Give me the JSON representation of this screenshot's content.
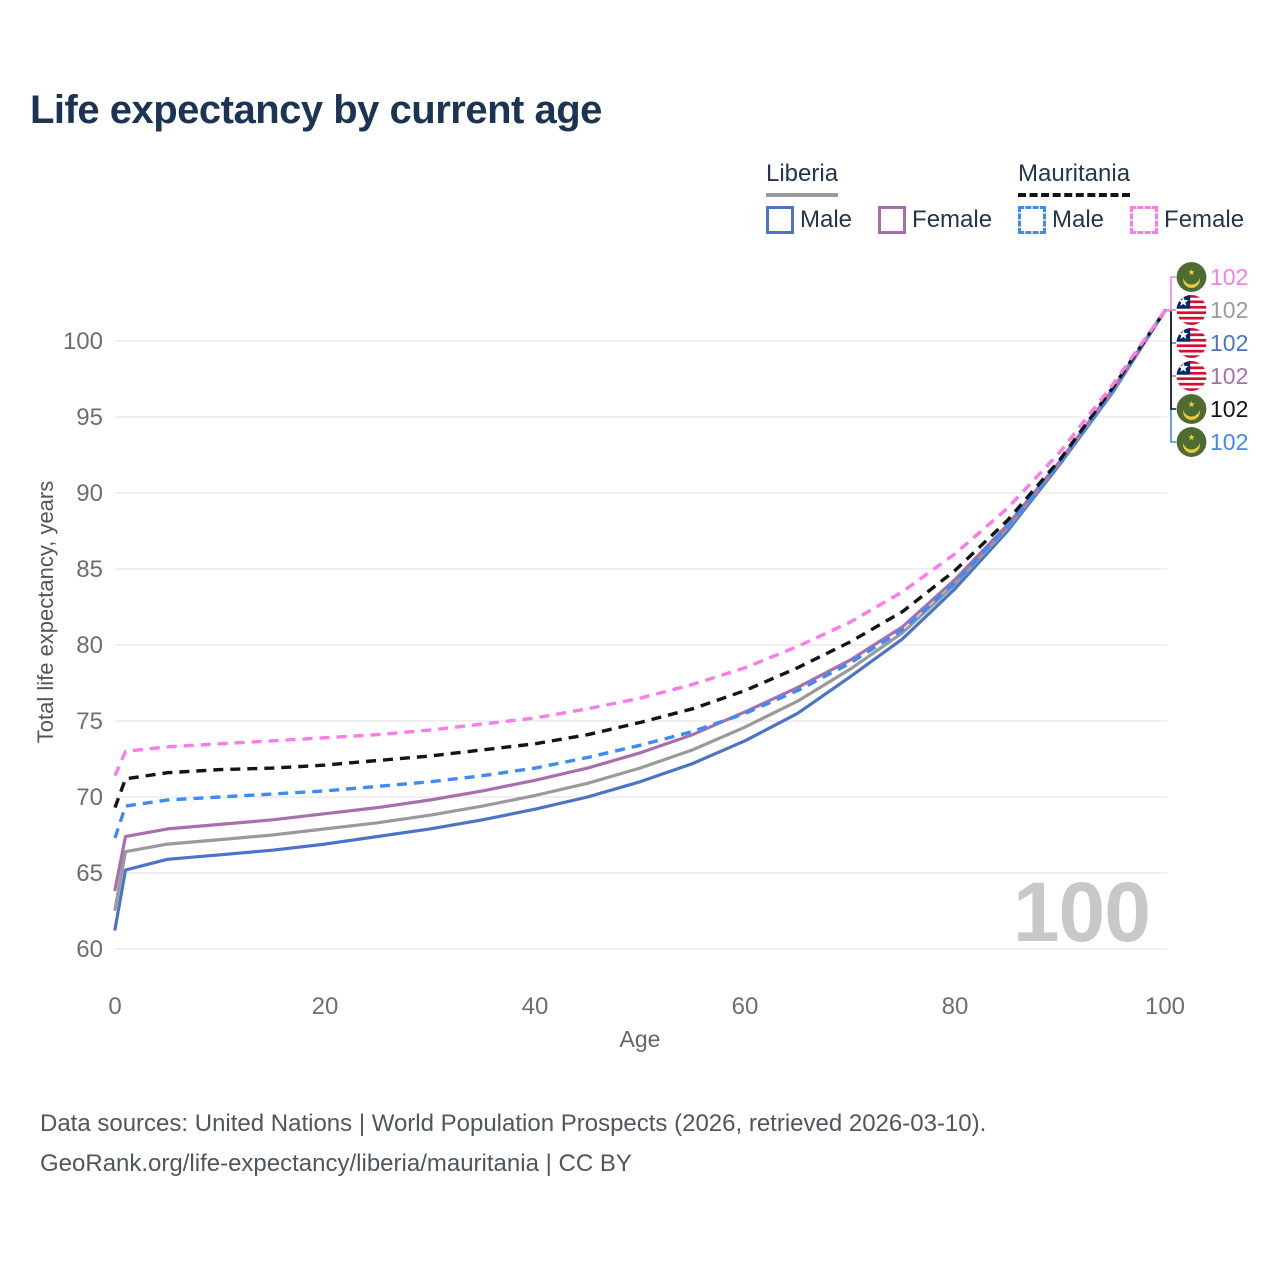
{
  "page": {
    "title": "Life expectancy by current age"
  },
  "legend": {
    "groups": [
      {
        "country": "Liberia",
        "items": [
          {
            "label": "Male"
          },
          {
            "label": "Female"
          }
        ]
      },
      {
        "country": "Mauritania",
        "items": [
          {
            "label": "Male"
          },
          {
            "label": "Female"
          }
        ]
      }
    ]
  },
  "watermark": "100",
  "footer": {
    "line1": "Data sources: United Nations | World Population Prospects (2026, retrieved 2026-03-10).",
    "line2": "GeoRank.org/life-expectancy/liberia/mauritania | CC BY"
  },
  "chart_data": {
    "type": "line",
    "title": "Life expectancy by current age",
    "xlabel": "Age",
    "ylabel": "Total life expectancy, years",
    "xlim": [
      0,
      100
    ],
    "ylim": [
      60,
      102
    ],
    "x_ticks": [
      0,
      20,
      40,
      60,
      80,
      100
    ],
    "y_ticks": [
      60,
      65,
      70,
      75,
      80,
      85,
      90,
      95,
      100
    ],
    "grid": "horizontal-only",
    "legend_position": "top-right",
    "current_age_indicator": "100",
    "ages": [
      0,
      1,
      5,
      10,
      15,
      20,
      25,
      30,
      35,
      40,
      45,
      50,
      55,
      60,
      65,
      70,
      75,
      80,
      85,
      90,
      95,
      100
    ],
    "series": [
      {
        "name": "Liberia Male",
        "country": "Liberia",
        "sex": "Male",
        "line_style": "solid",
        "color": "#4a74c4",
        "flag": "liberia",
        "end_value_label": "102",
        "label_row": 2,
        "z": 1,
        "values": [
          61.3,
          65.2,
          65.9,
          66.2,
          66.5,
          66.9,
          67.4,
          67.9,
          68.5,
          69.2,
          70.0,
          71.0,
          72.2,
          73.7,
          75.5,
          77.9,
          80.4,
          83.7,
          87.5,
          91.9,
          96.6,
          102
        ]
      },
      {
        "name": "Liberia Both sexes",
        "country": "Liberia",
        "sex": "Both",
        "line_style": "solid",
        "color": "#9a9a9a",
        "flag": "liberia",
        "end_value_label": "102",
        "label_row": 1,
        "z": 2,
        "values": [
          62.6,
          66.4,
          66.9,
          67.2,
          67.5,
          67.9,
          68.3,
          68.8,
          69.4,
          70.1,
          70.9,
          71.9,
          73.1,
          74.6,
          76.3,
          78.4,
          80.8,
          84.0,
          87.7,
          92.0,
          96.7,
          102
        ]
      },
      {
        "name": "Liberia Female",
        "country": "Liberia",
        "sex": "Female",
        "line_style": "solid",
        "color": "#a86fad",
        "flag": "liberia",
        "end_value_label": "102",
        "label_row": 3,
        "z": 3,
        "values": [
          63.9,
          67.4,
          67.9,
          68.2,
          68.5,
          68.9,
          69.3,
          69.8,
          70.4,
          71.1,
          71.9,
          72.9,
          74.1,
          75.6,
          77.2,
          79.0,
          81.2,
          84.3,
          87.9,
          92.1,
          96.8,
          102
        ]
      },
      {
        "name": "Mauritania Male",
        "country": "Mauritania",
        "sex": "Male",
        "line_style": "dashed",
        "color": "#3d8bf5",
        "flag": "mauritania",
        "end_value_label": "102",
        "label_row": 5,
        "z": 4,
        "values": [
          67.3,
          69.4,
          69.8,
          70.0,
          70.2,
          70.4,
          70.7,
          71.0,
          71.4,
          71.9,
          72.6,
          73.4,
          74.3,
          75.5,
          77.0,
          78.8,
          81.0,
          84.1,
          87.8,
          92.0,
          96.7,
          102
        ]
      },
      {
        "name": "Mauritania Both sexes",
        "country": "Mauritania",
        "sex": "Both",
        "line_style": "dashed",
        "color": "#141414",
        "flag": "mauritania",
        "end_value_label": "102",
        "label_row": 4,
        "z": 5,
        "values": [
          69.3,
          71.2,
          71.6,
          71.8,
          71.9,
          72.1,
          72.4,
          72.7,
          73.1,
          73.5,
          74.1,
          74.9,
          75.8,
          77.0,
          78.5,
          80.2,
          82.2,
          84.9,
          88.2,
          92.2,
          96.9,
          102
        ]
      },
      {
        "name": "Mauritania Female",
        "country": "Mauritania",
        "sex": "Female",
        "line_style": "dashed",
        "color": "#fb7ce8",
        "flag": "mauritania",
        "end_value_label": "102",
        "label_row": 0,
        "z": 6,
        "values": [
          71.4,
          73.0,
          73.3,
          73.5,
          73.7,
          73.9,
          74.1,
          74.4,
          74.8,
          75.2,
          75.8,
          76.5,
          77.4,
          78.5,
          79.9,
          81.5,
          83.5,
          86.0,
          89.0,
          92.7,
          97.1,
          102
        ]
      }
    ]
  }
}
